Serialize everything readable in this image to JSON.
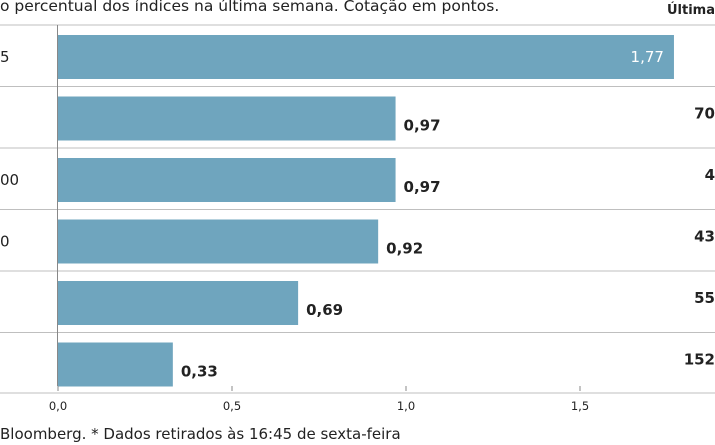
{
  "header": {
    "subtitle": "o percentual dos índices na última semana. Cotação em pontos.",
    "column_title": "Última c"
  },
  "footer": {
    "text": "Bloomberg.  * Dados retirados às 16:45 de sexta-feira"
  },
  "colors": {
    "bar": "#6fa5be",
    "separator": "#bfbfbf",
    "axis": "#888888"
  },
  "chart_data": {
    "type": "bar",
    "orientation": "horizontal",
    "categories": [
      "5",
      "",
      "00",
      "0",
      "",
      ""
    ],
    "values": [
      1.77,
      0.97,
      0.97,
      0.92,
      0.69,
      0.33
    ],
    "value_labels": [
      "1,77",
      "0,97",
      "0,97",
      "0,92",
      "0,69",
      "0,33"
    ],
    "last_quote_labels": [
      "",
      "70",
      "4",
      "43",
      "55",
      "152"
    ],
    "xlim": [
      0,
      1.875
    ],
    "xticks": [
      0,
      0.5,
      1.0,
      1.5
    ],
    "xtick_labels": [
      "0,0",
      "0,5",
      "1,0",
      "1,5"
    ],
    "grid": false
  }
}
